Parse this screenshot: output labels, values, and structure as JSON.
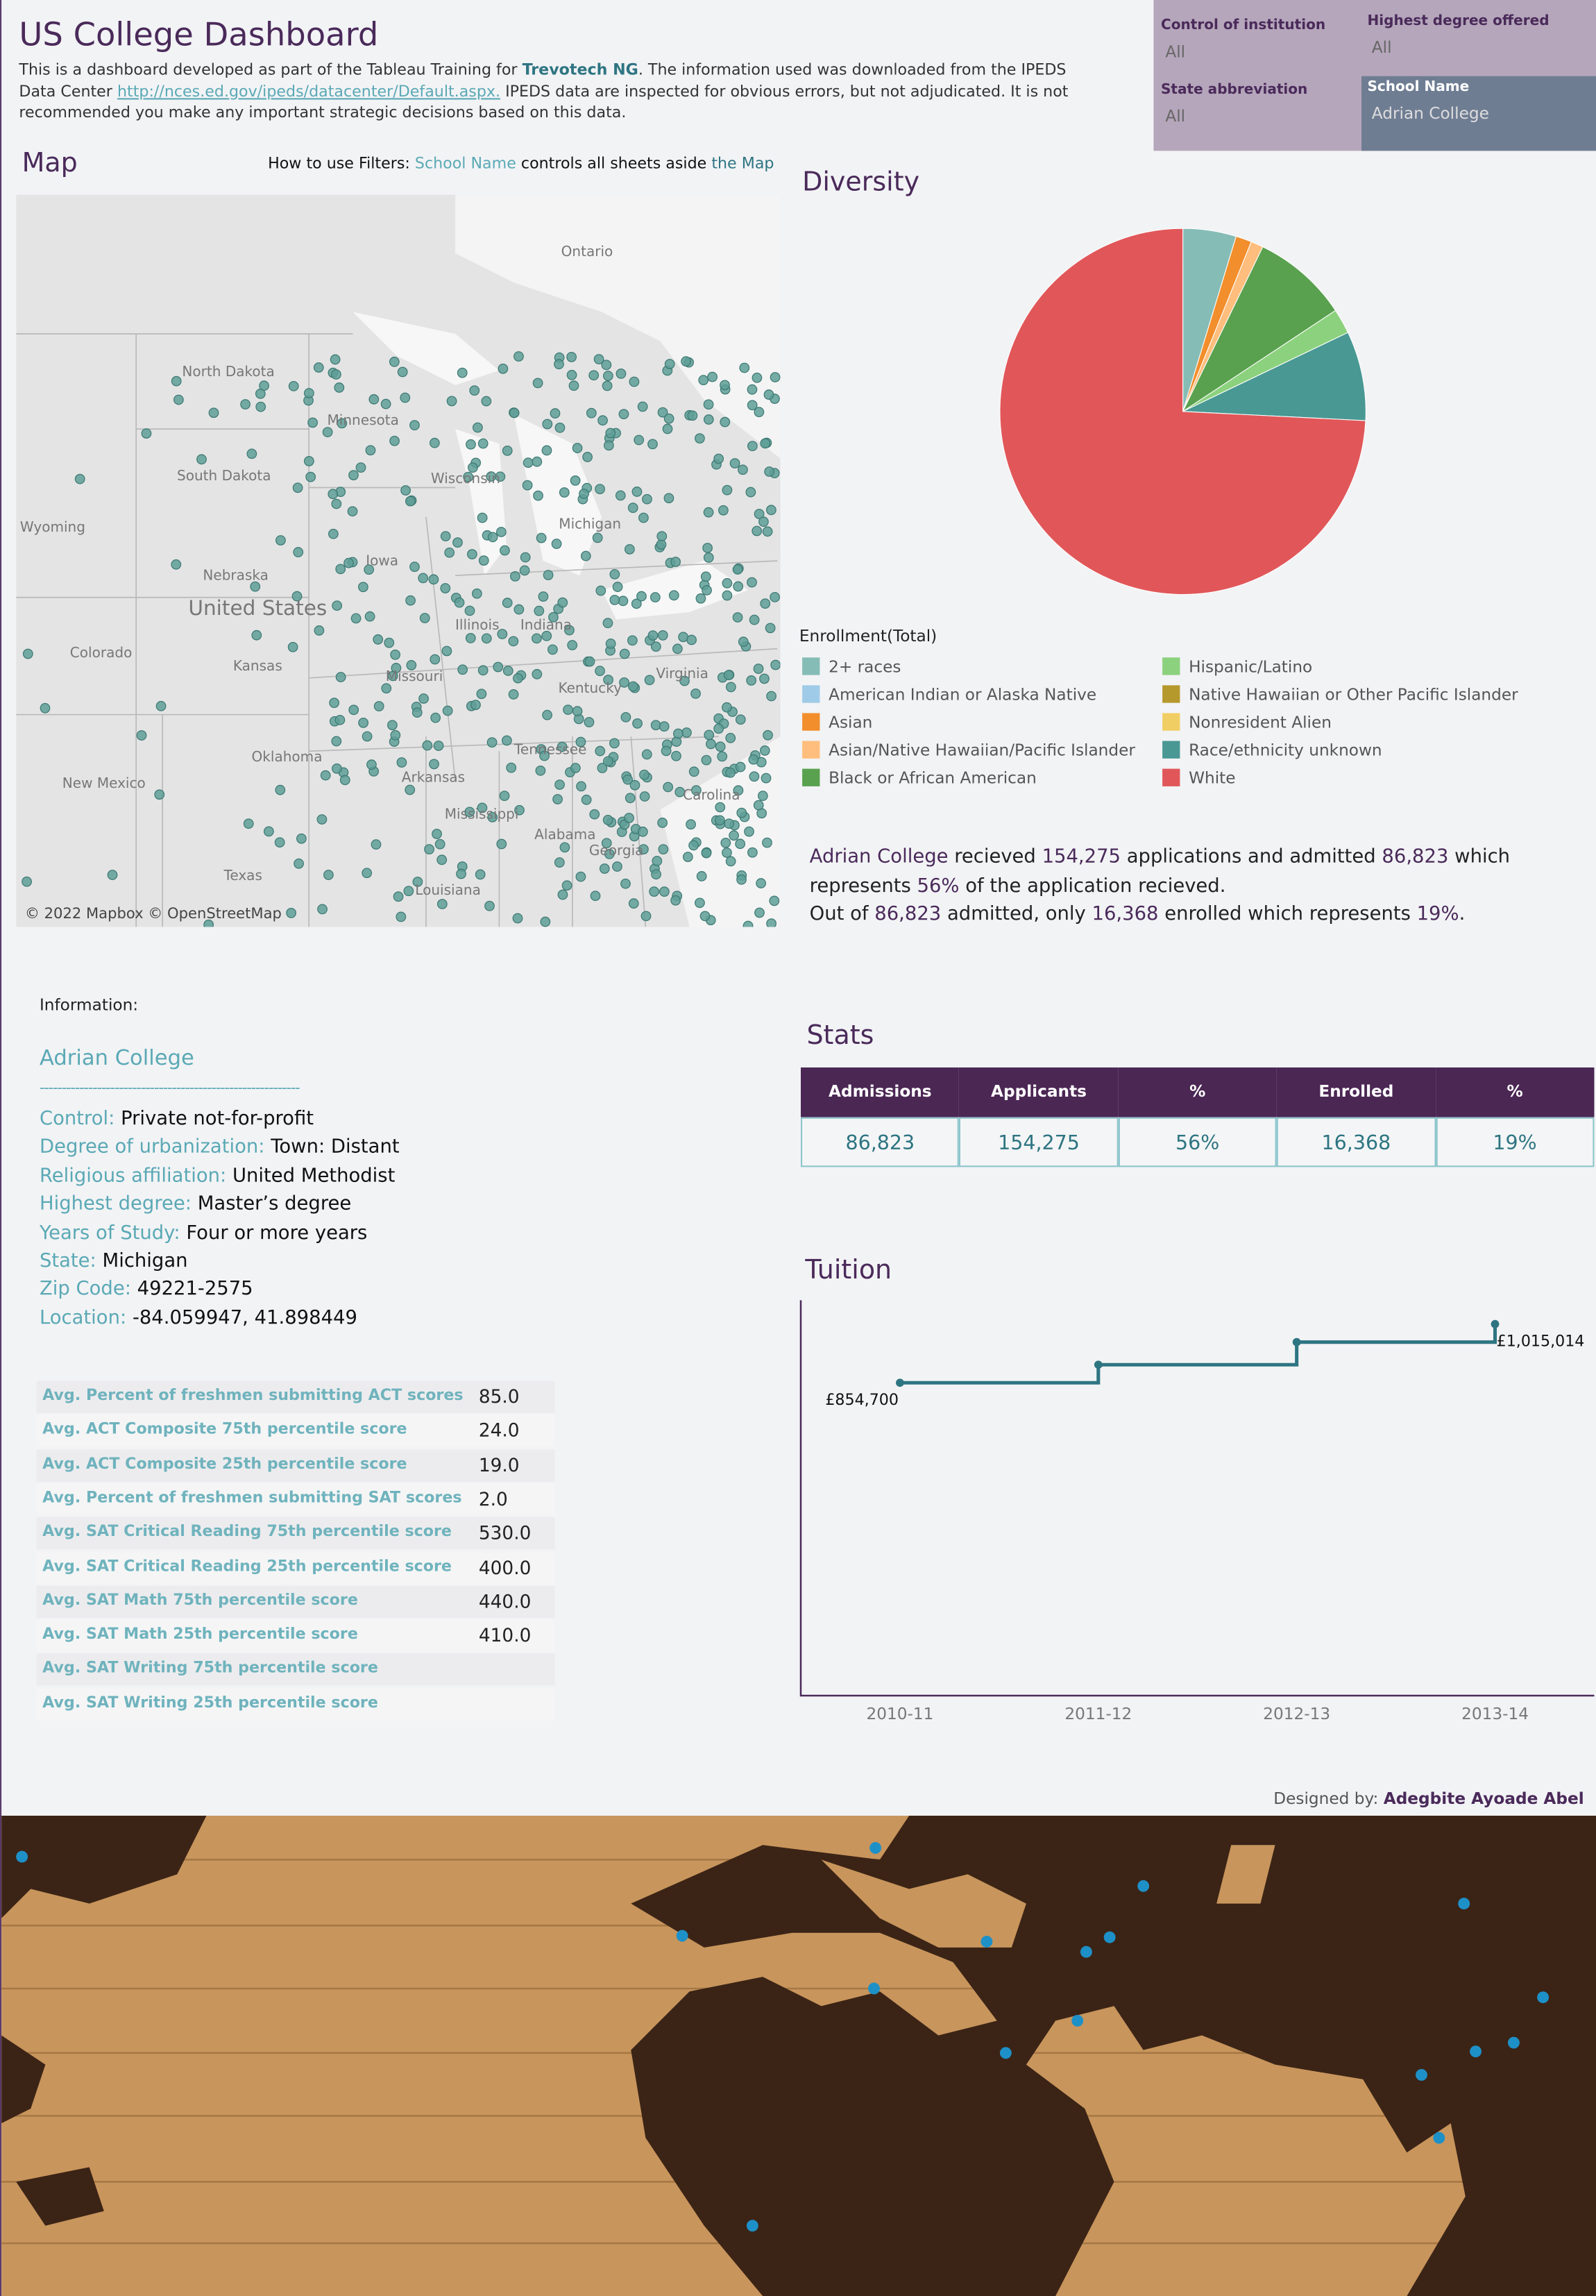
{
  "header": {
    "title": "US College Dashboard",
    "description": [
      "This is a dashboard developed as part of the Tableau Training for ",
      "Trevotech NG",
      ". The information used was downloaded from the IPEDS Data Center ",
      "http://nces.ed.gov/ipeds/datacenter/Default.aspx.",
      " IPEDS data are inspected for obvious errors, but not adjudicated. It is not recommended you make any important strategic decisions based on this data."
    ]
  },
  "filters": [
    {
      "label": "Control of institution",
      "value": "All"
    },
    {
      "label": "Highest degree offered",
      "value": "All"
    },
    {
      "label": "State abbreviation",
      "value": "All"
    },
    {
      "label": "School Name",
      "value": "Adrian College"
    }
  ],
  "map": {
    "title": "Map",
    "hint": [
      "How to use Filters: ",
      "School Name",
      " controls all sheets aside ",
      "the Map"
    ],
    "labels": [
      "Ontario",
      "North Dakota",
      "Minnesota",
      "South Dakota",
      "Wisconsin",
      "Michigan",
      "Wyoming",
      "Nebraska",
      "Iowa",
      "United States",
      "Colorado",
      "Kansas",
      "Missouri",
      "Illinois",
      "Indiana",
      "Kentucky",
      "Virginia",
      "Oklahoma",
      "Arkansas",
      "Tennessee",
      "New Mexico",
      "Mississippi",
      "Alabama",
      "Georgia",
      "Louisiana",
      "Texas",
      "Carolina"
    ],
    "attribution": "© 2022 Mapbox © OpenStreetMap"
  },
  "chart_data": [
    {
      "type": "pie",
      "title": "Diversity",
      "legend_title": "Enrollment(Total)",
      "categories": [
        "2+ races",
        "American Indian or Alaska Native",
        "Asian",
        "Asian/Native Hawaiian/Pacific Islander",
        "Black or African American",
        "Hispanic/Latino",
        "Native Hawaiian or Other Pacific Islander",
        "Nonresident Alien",
        "Race/ethnicity unknown",
        "White"
      ],
      "values": [
        4.7,
        0,
        1.4,
        1.1,
        8.5,
        2.2,
        0,
        0,
        7.9,
        74.2
      ],
      "colors": [
        "#86bcb6",
        "#a0cbe8",
        "#f28e2b",
        "#ffbe7d",
        "#59a14f",
        "#8cd17d",
        "#b6992d",
        "#f1ce63",
        "#499894",
        "#e15759"
      ]
    },
    {
      "type": "line",
      "title": "Tuition",
      "categories": [
        "2010-11",
        "2011-12",
        "2012-13",
        "2013-14"
      ],
      "values": [
        854700,
        904000,
        965700,
        1015014
      ],
      "value_labels": [
        "£854,700",
        null,
        null,
        "£1,015,014"
      ],
      "ylim": [
        0,
        1080000
      ],
      "color": "#2e7582",
      "step": true
    }
  ],
  "summary": [
    "Adrian College",
    " recieved ",
    "154,275",
    " applications and admitted ",
    "86,823",
    " which represents ",
    "56%",
    " of the application recieved.",
    "Out of ",
    "86,823",
    " admitted, only ",
    "16,368",
    " enrolled which represents ",
    "19%",
    "."
  ],
  "stats": {
    "title": "Stats",
    "columns": [
      "Admissions",
      "Applicants",
      "%",
      "Enrolled",
      "%"
    ],
    "rows": [
      [
        "86,823",
        "154,275",
        "56%",
        "16,368",
        "19%"
      ]
    ]
  },
  "info": {
    "label": "Information:",
    "school": "Adrian College",
    "divider": "-----------------------------------------------------------",
    "fields": [
      {
        "key": "Control:",
        "value": "Private not-for-profit"
      },
      {
        "key": "Degree of urbanization:",
        "value": "Town: Distant"
      },
      {
        "key": "Religious affiliation:",
        "value": "United Methodist"
      },
      {
        "key": "Highest degree:",
        "value": "Master’s degree"
      },
      {
        "key": "Years of Study:",
        "value": "Four or more years"
      },
      {
        "key": "State:",
        "value": "Michigan"
      },
      {
        "key": "Zip Code:",
        "value": "49221-2575"
      },
      {
        "key": "Location:",
        "value": "-84.059947, 41.898449"
      }
    ]
  },
  "scores": [
    {
      "label": "Avg. Percent of freshmen submitting ACT scores",
      "value": "85.0"
    },
    {
      "label": "Avg. ACT Composite 75th percentile score",
      "value": "24.0"
    },
    {
      "label": "Avg. ACT Composite 25th percentile score",
      "value": "19.0"
    },
    {
      "label": "Avg. Percent of freshmen submitting SAT scores",
      "value": "2.0"
    },
    {
      "label": "Avg. SAT Critical Reading 75th percentile score",
      "value": "530.0"
    },
    {
      "label": "Avg. SAT Critical Reading 25th percentile score",
      "value": "400.0"
    },
    {
      "label": "Avg. SAT Math 75th percentile score",
      "value": "440.0"
    },
    {
      "label": "Avg. SAT Math 25th percentile score",
      "value": "410.0"
    },
    {
      "label": "Avg. SAT Writing 75th percentile score"
    },
    {
      "label": "Avg. SAT Writing 25th percentile score"
    }
  ],
  "footer": [
    "Designed by: ",
    "Adegbite Ayoade Abel"
  ]
}
